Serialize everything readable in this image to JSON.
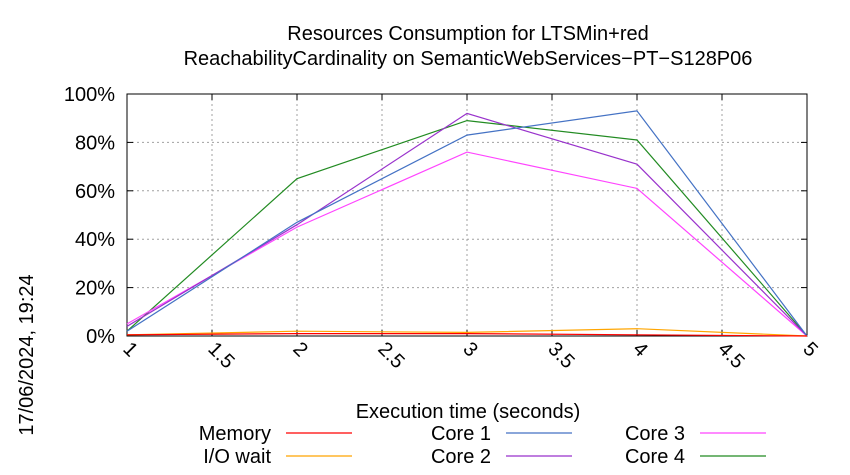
{
  "chart_data": {
    "type": "line",
    "title": "Resources Consumption for LTSMin+red",
    "subtitle": "ReachabilityCardinality on SemanticWebServices−PT−S128P06",
    "xlabel": "Execution time (seconds)",
    "ylabel": "",
    "timestamp": "17/06/2024, 19:24",
    "xlim": [
      1,
      5
    ],
    "ylim": [
      0,
      100
    ],
    "x_ticks": [
      "1",
      "1.5",
      "2",
      "2.5",
      "3",
      "3.5",
      "4",
      "4.5",
      "5"
    ],
    "y_ticks": [
      "0%",
      "20%",
      "40%",
      "60%",
      "80%",
      "100%"
    ],
    "grid": true,
    "legend_position": "bottom",
    "series": [
      {
        "name": "Memory",
        "color": "#ff0000",
        "x": [
          1,
          2,
          3,
          4,
          5
        ],
        "y": [
          0.5,
          1,
          1,
          0.5,
          0
        ]
      },
      {
        "name": "I/O wait",
        "color": "#ffa500",
        "x": [
          1,
          2,
          3,
          4,
          5
        ],
        "y": [
          0.5,
          2,
          1.5,
          3,
          0
        ]
      },
      {
        "name": "Core 1",
        "color": "#4472c4",
        "x": [
          1,
          2,
          3,
          4,
          5
        ],
        "y": [
          2,
          47,
          83,
          93,
          0
        ]
      },
      {
        "name": "Core 2",
        "color": "#9932cc",
        "x": [
          1,
          2,
          3,
          4,
          5
        ],
        "y": [
          4,
          46,
          92,
          71,
          0
        ]
      },
      {
        "name": "Core 3",
        "color": "#ff44ff",
        "x": [
          1,
          2,
          3,
          4,
          5
        ],
        "y": [
          5,
          45,
          76,
          61,
          0
        ]
      },
      {
        "name": "Core 4",
        "color": "#228b22",
        "x": [
          1,
          2,
          3,
          4,
          5
        ],
        "y": [
          2,
          65,
          89,
          81,
          0
        ]
      }
    ]
  }
}
